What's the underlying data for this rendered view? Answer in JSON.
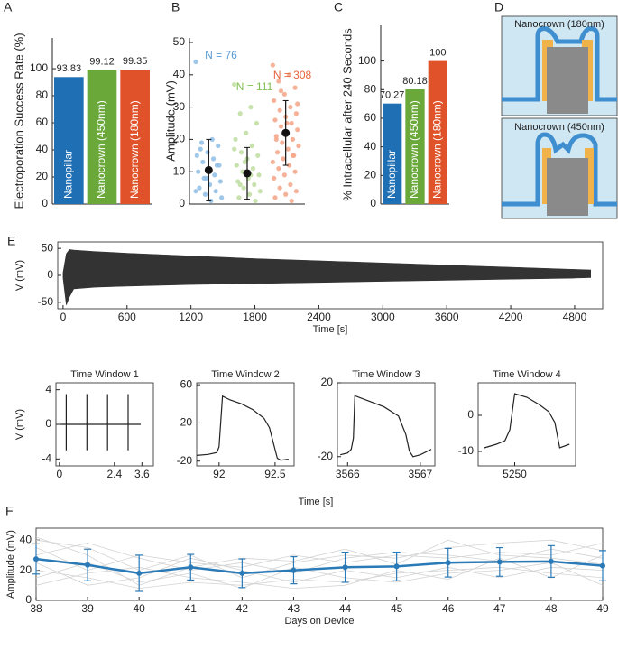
{
  "chart_data": [
    {
      "type": "bar",
      "panel_label": "A",
      "ylabel": "Electroporation Success Rate (%)",
      "categories": [
        "Nanopillar",
        "Nanocrown (450nm)",
        "Nanocrown (180nm)"
      ],
      "values": [
        93.83,
        99.12,
        99.35
      ],
      "colors": [
        "#1f6fb5",
        "#6aa83a",
        "#e0522a"
      ],
      "ylim": [
        0,
        122.7
      ],
      "yticks": [
        0,
        20,
        40,
        60,
        80,
        100
      ]
    },
    {
      "type": "strip",
      "panel_label": "B",
      "ylabel": "Amplitude (mV)",
      "ylim": [
        0,
        51.4
      ],
      "yticks": [
        0,
        10,
        20,
        30,
        40,
        50
      ],
      "groups": [
        {
          "label": "N = 76",
          "color": "#8ebde6",
          "label_color": "#5b9bd5",
          "points": [
            44,
            20,
            19,
            18,
            16,
            15,
            14,
            13,
            12,
            11,
            10,
            9,
            8,
            7,
            6,
            5,
            4,
            3,
            2,
            1,
            17,
            12,
            8,
            4
          ],
          "mean": 10.5,
          "error": 9.5
        },
        {
          "label": "N = 111",
          "color": "#bedd9f",
          "label_color": "#7fbf4f",
          "points": [
            37,
            30,
            28,
            25,
            22,
            20,
            18,
            16,
            15,
            14,
            12,
            11,
            10,
            9,
            8,
            7,
            6,
            5,
            4,
            3,
            2,
            1,
            13,
            17,
            9,
            6
          ],
          "mean": 9.5,
          "error": 8
        },
        {
          "label": "N = 308",
          "color": "#f5a486",
          "label_color": "#e8643c",
          "points": [
            43,
            40,
            38,
            36,
            34,
            32,
            30,
            29,
            28,
            27,
            26,
            25,
            24,
            23,
            22,
            21,
            20,
            19,
            18,
            17,
            16,
            15,
            14,
            13,
            12,
            11,
            10,
            9,
            8,
            6,
            5,
            4,
            3,
            2,
            1,
            35,
            31,
            25,
            20,
            15
          ],
          "mean": 22,
          "error": 10
        }
      ]
    },
    {
      "type": "bar",
      "panel_label": "C",
      "ylabel": "% Intracellular after 240 Seconds",
      "categories": [
        "Nanopillar",
        "Nanocrown (450nm)",
        "Nanocrown (180nm)"
      ],
      "values": [
        70.27,
        80.18,
        100
      ],
      "colors": [
        "#1f6fb5",
        "#6aa83a",
        "#e0522a"
      ],
      "ylim": [
        0,
        125
      ],
      "yticks": [
        0,
        20,
        40,
        60,
        80,
        100
      ]
    },
    {
      "type": "envelope",
      "panel_label": "E",
      "ylabel": "V (mV)",
      "xlabel": "Time [s]",
      "color": "#333333",
      "x": [
        0,
        30,
        60,
        100,
        300,
        600,
        1200,
        1800,
        2400,
        3000,
        3600,
        4200,
        4800,
        4950
      ],
      "upper": [
        5,
        40,
        48,
        47,
        44,
        41,
        36,
        31,
        27,
        23,
        19,
        15,
        11,
        10
      ],
      "lower": [
        -5,
        -55,
        -40,
        -25,
        -22,
        -20,
        -17,
        -15,
        -13,
        -11,
        -9,
        -7,
        -5,
        -4
      ],
      "xlim": [
        -50,
        5063
      ],
      "ylim": [
        -62,
        62
      ],
      "xticks": [
        0,
        600,
        1200,
        1800,
        2400,
        3000,
        3600,
        4200,
        4800
      ],
      "yticks": [
        -50,
        0,
        50
      ]
    },
    {
      "type": "line",
      "title": "Time Window 1",
      "color": "#222222",
      "x": [
        0.05,
        0.3,
        0.3,
        0.3,
        0.3,
        1.2,
        1.2,
        1.2,
        1.2,
        2.1,
        2.1,
        2.1,
        2.1,
        3.0,
        3.0,
        3.0,
        3.0,
        3.55
      ],
      "y": [
        0,
        0,
        3.5,
        -3,
        0,
        0,
        3.5,
        -3,
        0,
        0,
        3.5,
        -3,
        0,
        0,
        3.5,
        -3,
        0,
        0
      ],
      "xlim": [
        -0.15,
        4.1
      ],
      "ylim": [
        -4.8,
        4.8
      ],
      "xticks": [
        0,
        2.4,
        3.6
      ],
      "yticks": [
        -4,
        0,
        4
      ]
    },
    {
      "type": "line",
      "title": "Time Window 2",
      "color": "#222222",
      "x": [
        91.8,
        91.9,
        91.98,
        92.0,
        92.03,
        92.1,
        92.2,
        92.3,
        92.4,
        92.45,
        92.5,
        92.52,
        92.55,
        92.62
      ],
      "y": [
        -14,
        -13,
        -11,
        -5,
        48,
        44,
        40,
        34,
        25,
        15,
        -8,
        -17,
        -19,
        -18
      ],
      "xlim": [
        91.8,
        92.67
      ],
      "ylim": [
        -25,
        62
      ],
      "xticks": [
        92,
        92.5
      ],
      "yticks": [
        -20,
        20,
        60
      ]
    },
    {
      "type": "line",
      "title": "Time Window 3",
      "color": "#222222",
      "x": [
        3565.9,
        3566.0,
        3566.05,
        3566.08,
        3566.1,
        3566.3,
        3566.5,
        3566.7,
        3566.8,
        3566.85,
        3566.9,
        3567.0,
        3567.15
      ],
      "y": [
        -19,
        -18,
        -16,
        -10,
        13,
        10,
        7,
        2,
        -8,
        -17,
        -20,
        -19,
        -16
      ],
      "xlim": [
        3565.86,
        3567.2
      ],
      "ylim": [
        -25,
        20
      ],
      "xticks": [
        3566,
        3567
      ],
      "yticks": [
        -20,
        20
      ]
    },
    {
      "type": "line",
      "title": "Time Window 4",
      "color": "#222222",
      "x": [
        5249.75,
        5249.85,
        5249.92,
        5249.96,
        5250.0,
        5250.1,
        5250.2,
        5250.28,
        5250.33,
        5250.37,
        5250.45
      ],
      "y": [
        -9,
        -8,
        -7,
        -4,
        6,
        5,
        3,
        1,
        -2,
        -9,
        -8
      ],
      "xlim": [
        5249.7,
        5250.5
      ],
      "ylim": [
        -14,
        9
      ],
      "xticks": [
        5250
      ],
      "yticks": [
        -10,
        0
      ]
    },
    {
      "type": "multiline",
      "panel_label": "F",
      "ylabel": "Amplitude (mV)",
      "xlabel": "Days on Device",
      "x": [
        38,
        39,
        40,
        41,
        42,
        43,
        44,
        45,
        46,
        47,
        48,
        49
      ],
      "xlim": [
        38,
        49
      ],
      "ylim": [
        0,
        47.9
      ],
      "xticks": [
        38,
        39,
        40,
        41,
        42,
        43,
        44,
        45,
        46,
        47,
        48,
        49
      ],
      "yticks": [
        0,
        20,
        40
      ],
      "series": [
        {
          "color": "#d3d3d3",
          "values": [
            40,
            35,
            20,
            30,
            15,
            25,
            30,
            28,
            35,
            38,
            40,
            33
          ]
        },
        {
          "color": "#d3d3d3",
          "values": [
            20,
            15,
            8,
            12,
            10,
            14,
            12,
            18,
            20,
            22,
            18,
            15
          ]
        },
        {
          "color": "#d3d3d3",
          "values": [
            30,
            38,
            28,
            20,
            25,
            18,
            28,
            32,
            30,
            26,
            34,
            28
          ]
        },
        {
          "color": "#d3d3d3",
          "values": [
            15,
            25,
            12,
            18,
            8,
            22,
            15,
            12,
            18,
            20,
            25,
            10
          ]
        },
        {
          "color": "#d3d3d3",
          "values": [
            35,
            20,
            30,
            25,
            22,
            30,
            25,
            30,
            28,
            32,
            30,
            38
          ]
        },
        {
          "color": "#d3d3d3",
          "values": [
            25,
            10,
            15,
            28,
            20,
            12,
            20,
            15,
            22,
            15,
            22,
            20
          ]
        },
        {
          "color": "#d3d3d3",
          "values": [
            42,
            30,
            10,
            22,
            28,
            26,
            34,
            24,
            40,
            30,
            28,
            24
          ]
        },
        {
          "color": "#d3d3d3",
          "values": [
            10,
            18,
            22,
            15,
            12,
            8,
            10,
            20,
            14,
            28,
            15,
            30
          ]
        }
      ],
      "mean": {
        "color": "#2a7ab8",
        "values": [
          27.5,
          23.5,
          18,
          22,
          18,
          20,
          22,
          22.5,
          25,
          25.5,
          25.8,
          23
        ],
        "errors": [
          10,
          10.5,
          12,
          8.5,
          9.5,
          9,
          10,
          9.5,
          9.5,
          9.5,
          10.5,
          10
        ]
      }
    }
  ],
  "diagram": {
    "panel_label": "D",
    "labels": [
      "Nanocrown (180nm)",
      "Nanocrown (450nm)"
    ]
  },
  "window_labels": {
    "xlabel": "Time [s]",
    "ylabel": "V (mV)"
  }
}
